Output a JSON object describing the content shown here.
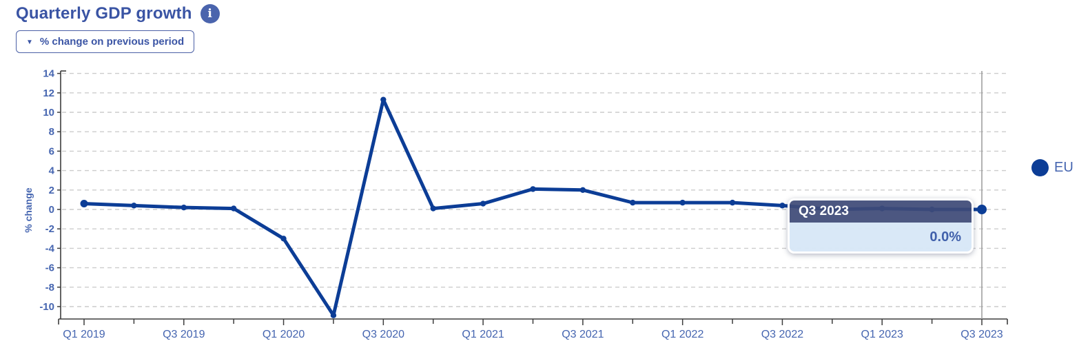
{
  "header": {
    "title": "Quarterly GDP growth",
    "info_icon": "info-circle-icon",
    "info_glyph": "i"
  },
  "controls": {
    "metric_dropdown": {
      "value": "% change on previous period",
      "caret_icon": "chevron-down-icon",
      "caret_glyph": "▼"
    }
  },
  "legend": {
    "position": "right",
    "items": [
      {
        "label": "EU",
        "color": "#0c3d96"
      }
    ]
  },
  "tooltip": {
    "title": "Q3 2023",
    "value": "0.0%",
    "header_bg": "#3e4a77",
    "body_bg": "#d7e7f7"
  },
  "colors": {
    "line": "#0c3d96",
    "axis": "#3c3c3c",
    "grid": "#cccccc",
    "crosshair": "#9a9a9a",
    "tick_text": "#4565b0",
    "title_text": "#3a54a4",
    "accent": "#3b55a5"
  },
  "chart_data": {
    "type": "line",
    "title": "Quarterly GDP growth",
    "xlabel": "",
    "ylabel": "% change",
    "categories": [
      "Q1 2019",
      "Q2 2019",
      "Q3 2019",
      "Q4 2019",
      "Q1 2020",
      "Q2 2020",
      "Q3 2020",
      "Q4 2020",
      "Q1 2021",
      "Q2 2021",
      "Q3 2021",
      "Q4 2021",
      "Q1 2022",
      "Q2 2022",
      "Q3 2022",
      "Q4 2022",
      "Q1 2023",
      "Q2 2023",
      "Q3 2023"
    ],
    "series": [
      {
        "name": "EU",
        "color": "#0c3d96",
        "values": [
          0.6,
          0.4,
          0.2,
          0.1,
          -3.0,
          -10.9,
          11.3,
          0.1,
          0.6,
          2.1,
          2.0,
          0.7,
          0.7,
          0.7,
          0.4,
          0.0,
          0.1,
          0.0,
          0.0
        ]
      }
    ],
    "ylim": [
      -11.3,
      14.3
    ],
    "yticks": [
      14,
      12,
      10,
      8,
      6,
      4,
      2,
      0,
      -2,
      -4,
      -6,
      -8,
      -10
    ],
    "xtick_labels": [
      "Q1 2019",
      "Q3 2019",
      "Q1 2020",
      "Q3 2020",
      "Q1 2021",
      "Q3 2021",
      "Q1 2022",
      "Q3 2022",
      "Q1 2023",
      "Q3 2023"
    ],
    "grid": "horizontal-dashed",
    "legend_position": "right",
    "active_point": {
      "category": "Q3 2023",
      "value": 0.0,
      "crosshair": true
    }
  }
}
